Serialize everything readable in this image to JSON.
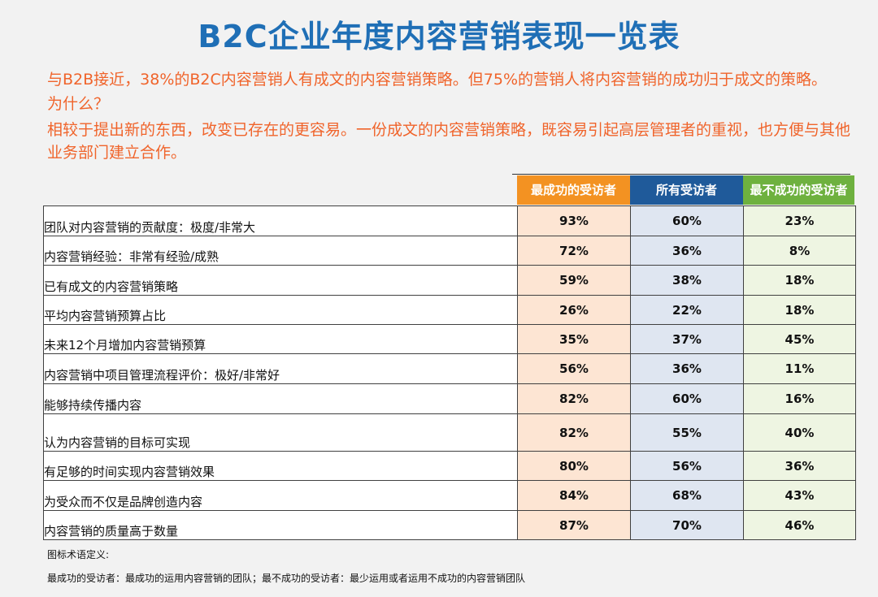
{
  "title": "B2C企业年度内容营销表现一览表",
  "intro": {
    "line1": "与B2B接近，38%的B2C内容营销人有成文的内容营销策略。但75%的营销人将内容营销的成功归于成文的策略。",
    "question": "为什么？",
    "reason": "相较于提出新的东西，改变已存在的更容易。一份成文的内容营销策略，既容易引起高层管理者的重视，也方便与其他业务部门建立合作。"
  },
  "headers": [
    "最成功的受访者",
    "所有受访者",
    "最不成功的受访者"
  ],
  "header_colors": [
    "#f39222",
    "#1f5a9a",
    "#6eb13f"
  ],
  "rows": [
    {
      "label": "团队对内容营销的贡献度：极度/非常大",
      "v": [
        "93%",
        "60%",
        "23%"
      ]
    },
    {
      "label": "内容营销经验：非常有经验/成熟",
      "v": [
        "72%",
        "36%",
        "8%"
      ]
    },
    {
      "label": "已有成文的内容营销策略",
      "v": [
        "59%",
        "38%",
        "18%"
      ]
    },
    {
      "label": "平均内容营销预算占比",
      "v": [
        "26%",
        "22%",
        "18%"
      ]
    },
    {
      "label": "未来12个月增加内容营销预算",
      "v": [
        "35%",
        "37%",
        "45%"
      ]
    },
    {
      "label": "内容营销中项目管理流程评价：极好/非常好",
      "v": [
        "56%",
        "36%",
        "11%"
      ]
    },
    {
      "label": "能够持续传播内容",
      "v": [
        "82%",
        "60%",
        "16%"
      ]
    },
    {
      "label": "认为内容营销的目标可实现",
      "v": [
        "82%",
        "55%",
        "40%"
      ]
    },
    {
      "label": "有足够的时间实现内容营销效果",
      "v": [
        "80%",
        "56%",
        "36%"
      ]
    },
    {
      "label": "为受众而不仅是品牌创造内容",
      "v": [
        "84%",
        "68%",
        "43%"
      ]
    },
    {
      "label": "内容营销的质量高于数量",
      "v": [
        "87%",
        "70%",
        "46%"
      ]
    }
  ],
  "footnote": {
    "heading": "图标术语定义:",
    "definition": "最成功的受访者：最成功的运用内容营销的团队；最不成功的受访者：最少运用或者运用不成功的内容营销团队"
  }
}
